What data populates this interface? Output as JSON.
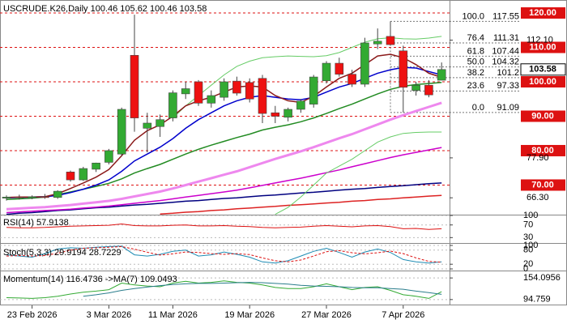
{
  "chart_data": [
    {
      "type": "candlestick",
      "title": "USCRUDE.K26,Daily 100.46 105.62 100.46 103.58",
      "open": [
        66.2,
        66.5,
        66.3,
        66.6,
        66.4,
        73.8,
        71.5,
        74.6,
        76.6,
        79.0,
        107.7,
        86.5,
        87.0,
        89.5,
        96.5,
        100.0,
        93.8,
        95.5,
        100.2,
        99.8,
        101.0,
        91.0,
        89.7,
        92.0,
        93.5,
        100.3,
        105.4,
        102.2,
        99.3,
        111.0,
        113.2,
        109.0,
        97.5,
        99.0,
        100.46
      ],
      "high": [
        67.0,
        67.2,
        67.0,
        67.4,
        68.5,
        74.2,
        75.3,
        76.5,
        80.5,
        92.5,
        119.5,
        91.0,
        90.5,
        97.5,
        100.0,
        100.5,
        97.5,
        101.0,
        101.5,
        101.0,
        102.0,
        93.0,
        92.5,
        95.0,
        102.0,
        106.0,
        107.0,
        103.5,
        112.8,
        115.5,
        117.55,
        110.5,
        100.0,
        100.5,
        105.62
      ],
      "low": [
        65.5,
        65.8,
        65.9,
        66.0,
        66.0,
        71.0,
        71.2,
        73.8,
        76.0,
        78.5,
        85.5,
        79.5,
        84.0,
        88.5,
        95.0,
        93.0,
        92.5,
        94.5,
        96.0,
        94.0,
        88.0,
        88.0,
        88.5,
        91.0,
        92.5,
        99.5,
        101.5,
        98.5,
        98.5,
        109.5,
        110.5,
        91.09,
        96.0,
        95.5,
        100.46
      ],
      "close": [
        66.5,
        66.3,
        66.6,
        66.4,
        68.2,
        71.5,
        74.8,
        76.4,
        80.0,
        92.0,
        89.5,
        88.0,
        89.0,
        96.8,
        98.0,
        93.8,
        96.0,
        100.0,
        96.7,
        95.0,
        90.8,
        90.0,
        92.0,
        94.4,
        101.4,
        105.4,
        102.2,
        99.3,
        111.3,
        111.8,
        110.8,
        98.4,
        99.0,
        96.2,
        103.58
      ],
      "up_color": "#33aa33",
      "down_color": "#ee1111",
      "ylim": [
        61.4,
        123.3
      ],
      "yticks": [
        {
          "value": 112.1,
          "label": "112.10"
        },
        {
          "value": 77.9,
          "label": "77.90"
        },
        {
          "value": 66.3,
          "label": "66.30"
        }
      ],
      "levels": [
        {
          "value": 120,
          "label": "120.00"
        },
        {
          "value": 110,
          "label": "110.00"
        },
        {
          "value": 100,
          "label": "100.00"
        },
        {
          "value": 90,
          "label": "90.00"
        },
        {
          "value": 80,
          "label": "80.00"
        },
        {
          "value": 70,
          "label": "70.00"
        }
      ],
      "level_color": "#dd1111",
      "last_price": {
        "value": 103.58,
        "label": "103.58"
      },
      "fib": [
        {
          "ratio": "100.0",
          "price": 117.55
        },
        {
          "ratio": "76.4",
          "price": 111.31
        },
        {
          "ratio": "61.8",
          "price": 107.44
        },
        {
          "ratio": "50.0",
          "price": 104.32
        },
        {
          "ratio": "38.2",
          "price": 101.2
        },
        {
          "ratio": "23.6",
          "price": 97.33
        },
        {
          "ratio": "0.0",
          "price": 91.09
        }
      ],
      "xticks": [
        {
          "value": 2,
          "label": "23 Feb 2026"
        },
        {
          "value": 8,
          "label": "3 Mar 2026"
        },
        {
          "value": 13,
          "label": "11 Mar 2026"
        },
        {
          "value": 19,
          "label": "19 Mar 2026"
        },
        {
          "value": 25,
          "label": "27 Mar 2026"
        },
        {
          "value": 31,
          "label": "7 Apr 2026"
        }
      ],
      "series": [
        {
          "color": "#dd2222",
          "width": 1.5,
          "values": [
            null,
            null,
            null,
            null,
            null,
            null,
            null,
            null,
            null,
            null,
            null,
            null,
            61.6,
            61.8,
            62.1,
            62.3,
            62.6,
            62.8,
            63.1,
            63.3,
            63.6,
            63.8,
            64.1,
            64.3,
            64.5,
            64.8,
            65.0,
            65.3,
            65.5,
            65.8,
            66.0,
            66.3,
            66.5,
            66.8,
            67.0
          ]
        },
        {
          "color": "#000080",
          "width": 1.5,
          "values": [
            61.5,
            61.8,
            62.0,
            62.3,
            62.6,
            62.8,
            63.1,
            63.4,
            63.6,
            63.9,
            64.2,
            64.4,
            64.7,
            65.0,
            65.3,
            65.5,
            65.8,
            66.1,
            66.3,
            66.6,
            66.9,
            67.1,
            67.4,
            67.7,
            67.9,
            68.2,
            68.5,
            68.8,
            69.0,
            69.3,
            69.6,
            69.8,
            70.1,
            70.4,
            70.6
          ]
        },
        {
          "color": "#cc00cc",
          "width": 1.5,
          "values": [
            62.0,
            62.2,
            62.4,
            62.6,
            62.8,
            63.0,
            63.3,
            63.6,
            63.9,
            64.3,
            64.7,
            65.1,
            65.5,
            66.0,
            66.5,
            67.0,
            67.5,
            68.0,
            68.5,
            69.2,
            69.9,
            70.6,
            71.3,
            72.0,
            72.8,
            73.6,
            74.4,
            75.3,
            76.2,
            77.1,
            78.0,
            78.8,
            79.5,
            80.2,
            80.9
          ]
        },
        {
          "color": "#ee88ee",
          "width": 3,
          "values": [
            63.0,
            63.2,
            63.4,
            63.6,
            63.9,
            64.2,
            64.6,
            65.0,
            65.4,
            66.0,
            66.7,
            67.4,
            68.1,
            69.0,
            70.0,
            71.0,
            72.0,
            73.0,
            74.0,
            75.2,
            76.4,
            77.6,
            78.7,
            79.8,
            81.0,
            82.3,
            83.6,
            84.8,
            86.2,
            87.6,
            89.0,
            90.3,
            91.5,
            92.7,
            93.9
          ]
        },
        {
          "color": "#66cc66",
          "width": 1,
          "values": [
            null,
            null,
            null,
            null,
            null,
            null,
            null,
            null,
            null,
            null,
            null,
            null,
            null,
            89.5,
            93.0,
            96.0,
            99.0,
            102.0,
            104.5,
            106.0,
            107.0,
            107.3,
            107.5,
            107.4,
            107.3,
            107.6,
            108.5,
            110.0,
            111.5,
            112.5,
            112.8,
            112.5,
            112.4,
            112.7,
            113.2
          ]
        },
        {
          "color": "#66cc66",
          "width": 1,
          "values": [
            null,
            null,
            null,
            null,
            null,
            null,
            null,
            null,
            null,
            null,
            null,
            null,
            null,
            null,
            null,
            null,
            null,
            null,
            null,
            null,
            null,
            61.5,
            63.5,
            66.5,
            70.0,
            73.5,
            75.5,
            77.5,
            80.0,
            82.5,
            84.0,
            85.0,
            85.3,
            85.4,
            85.4
          ]
        },
        {
          "color": "#228b22",
          "width": 1.5,
          "values": [
            65.8,
            66.0,
            66.2,
            66.5,
            67.2,
            68.0,
            68.8,
            69.6,
            70.5,
            71.8,
            73.5,
            74.8,
            76.0,
            77.5,
            79.0,
            80.4,
            81.6,
            82.7,
            83.8,
            84.8,
            86.0,
            86.8,
            87.5,
            88.4,
            89.5,
            90.8,
            92.2,
            93.5,
            95.0,
            96.5,
            97.8,
            98.7,
            99.2,
            99.5,
            99.8
          ]
        },
        {
          "color": "#0000cc",
          "width": 1.5,
          "values": [
            66.3,
            66.4,
            66.5,
            66.6,
            67.0,
            67.8,
            68.8,
            70.0,
            71.5,
            74.0,
            77.0,
            79.0,
            81.0,
            83.5,
            86.5,
            89.0,
            91.0,
            93.0,
            94.5,
            95.5,
            96.0,
            95.5,
            95.0,
            94.8,
            95.5,
            97.0,
            98.5,
            99.5,
            101.0,
            102.5,
            103.5,
            104.2,
            104.0,
            103.0,
            102.0
          ]
        },
        {
          "color": "#8b1a1a",
          "width": 1.5,
          "values": [
            66.4,
            66.5,
            66.5,
            66.6,
            67.5,
            69.0,
            70.6,
            72.3,
            74.5,
            78.5,
            83.0,
            85.8,
            87.5,
            90.0,
            93.0,
            94.5,
            95.5,
            97.0,
            98.5,
            98.8,
            98.5,
            96.0,
            94.5,
            94.0,
            95.8,
            98.5,
            101.0,
            102.5,
            105.0,
            107.5,
            108.0,
            107.0,
            105.0,
            102.5,
            101.3
          ]
        }
      ]
    },
    {
      "type": "line",
      "title": "RSI(14) 57.9138",
      "ylim": [
        18,
        100
      ],
      "yticks": [
        30,
        70,
        100
      ],
      "series": [
        {
          "color": "#dd1111",
          "values": [
            62,
            61,
            61,
            62,
            64,
            66,
            67,
            68,
            69,
            73,
            68,
            67,
            67,
            69,
            70,
            67,
            67,
            68,
            66,
            65,
            62,
            61,
            62,
            63,
            66,
            68,
            66,
            64,
            67,
            68,
            65,
            58,
            59,
            56,
            57.9138
          ]
        }
      ]
    },
    {
      "type": "line",
      "title": "Stoch(5,3,3) 29.9194 28.7229",
      "ylim": [
        0,
        100
      ],
      "yticks": [
        0,
        20,
        80,
        100
      ],
      "series": [
        {
          "color": "#1e8cb4",
          "values": [
            60,
            55,
            50,
            65,
            85,
            90,
            88,
            92,
            95,
            97,
            60,
            55,
            62,
            75,
            80,
            55,
            60,
            72,
            62,
            50,
            30,
            25,
            35,
            55,
            75,
            88,
            70,
            50,
            72,
            85,
            70,
            40,
            30,
            25,
            29.9194
          ]
        },
        {
          "color": "#dd1111",
          "dashed": true,
          "values": [
            55,
            57,
            55,
            57,
            67,
            80,
            88,
            90,
            92,
            95,
            84,
            71,
            59,
            64,
            72,
            70,
            65,
            62,
            65,
            61,
            47,
            35,
            30,
            38,
            55,
            73,
            78,
            69,
            64,
            69,
            76,
            65,
            47,
            32,
            28.7229
          ]
        }
      ]
    },
    {
      "type": "line",
      "title": "Momentum(14) 116.4736 ->MA(7) 109.0493",
      "ylim": [
        81,
        170
      ],
      "yticks": [
        94.759,
        154.0956
      ],
      "series": [
        {
          "color": "#33aa33",
          "values": [
            100,
            99,
            98,
            100,
            104,
            110,
            115,
            118,
            122,
            140,
            135,
            132,
            130,
            140,
            145,
            140,
            142,
            146,
            142,
            140,
            135,
            128,
            125,
            125,
            130,
            138,
            130,
            122,
            128,
            130,
            120,
            108,
            104,
            98,
            116.4736
          ]
        },
        {
          "color": "#2a7d8c",
          "values": [
            null,
            null,
            null,
            null,
            null,
            null,
            104,
            108,
            113,
            120,
            125,
            129,
            133,
            136,
            138,
            139,
            139,
            140,
            141,
            142,
            141,
            139,
            137,
            134,
            132,
            131,
            130,
            128,
            127,
            127,
            125,
            123,
            118,
            114,
            109.0493
          ]
        }
      ]
    }
  ]
}
